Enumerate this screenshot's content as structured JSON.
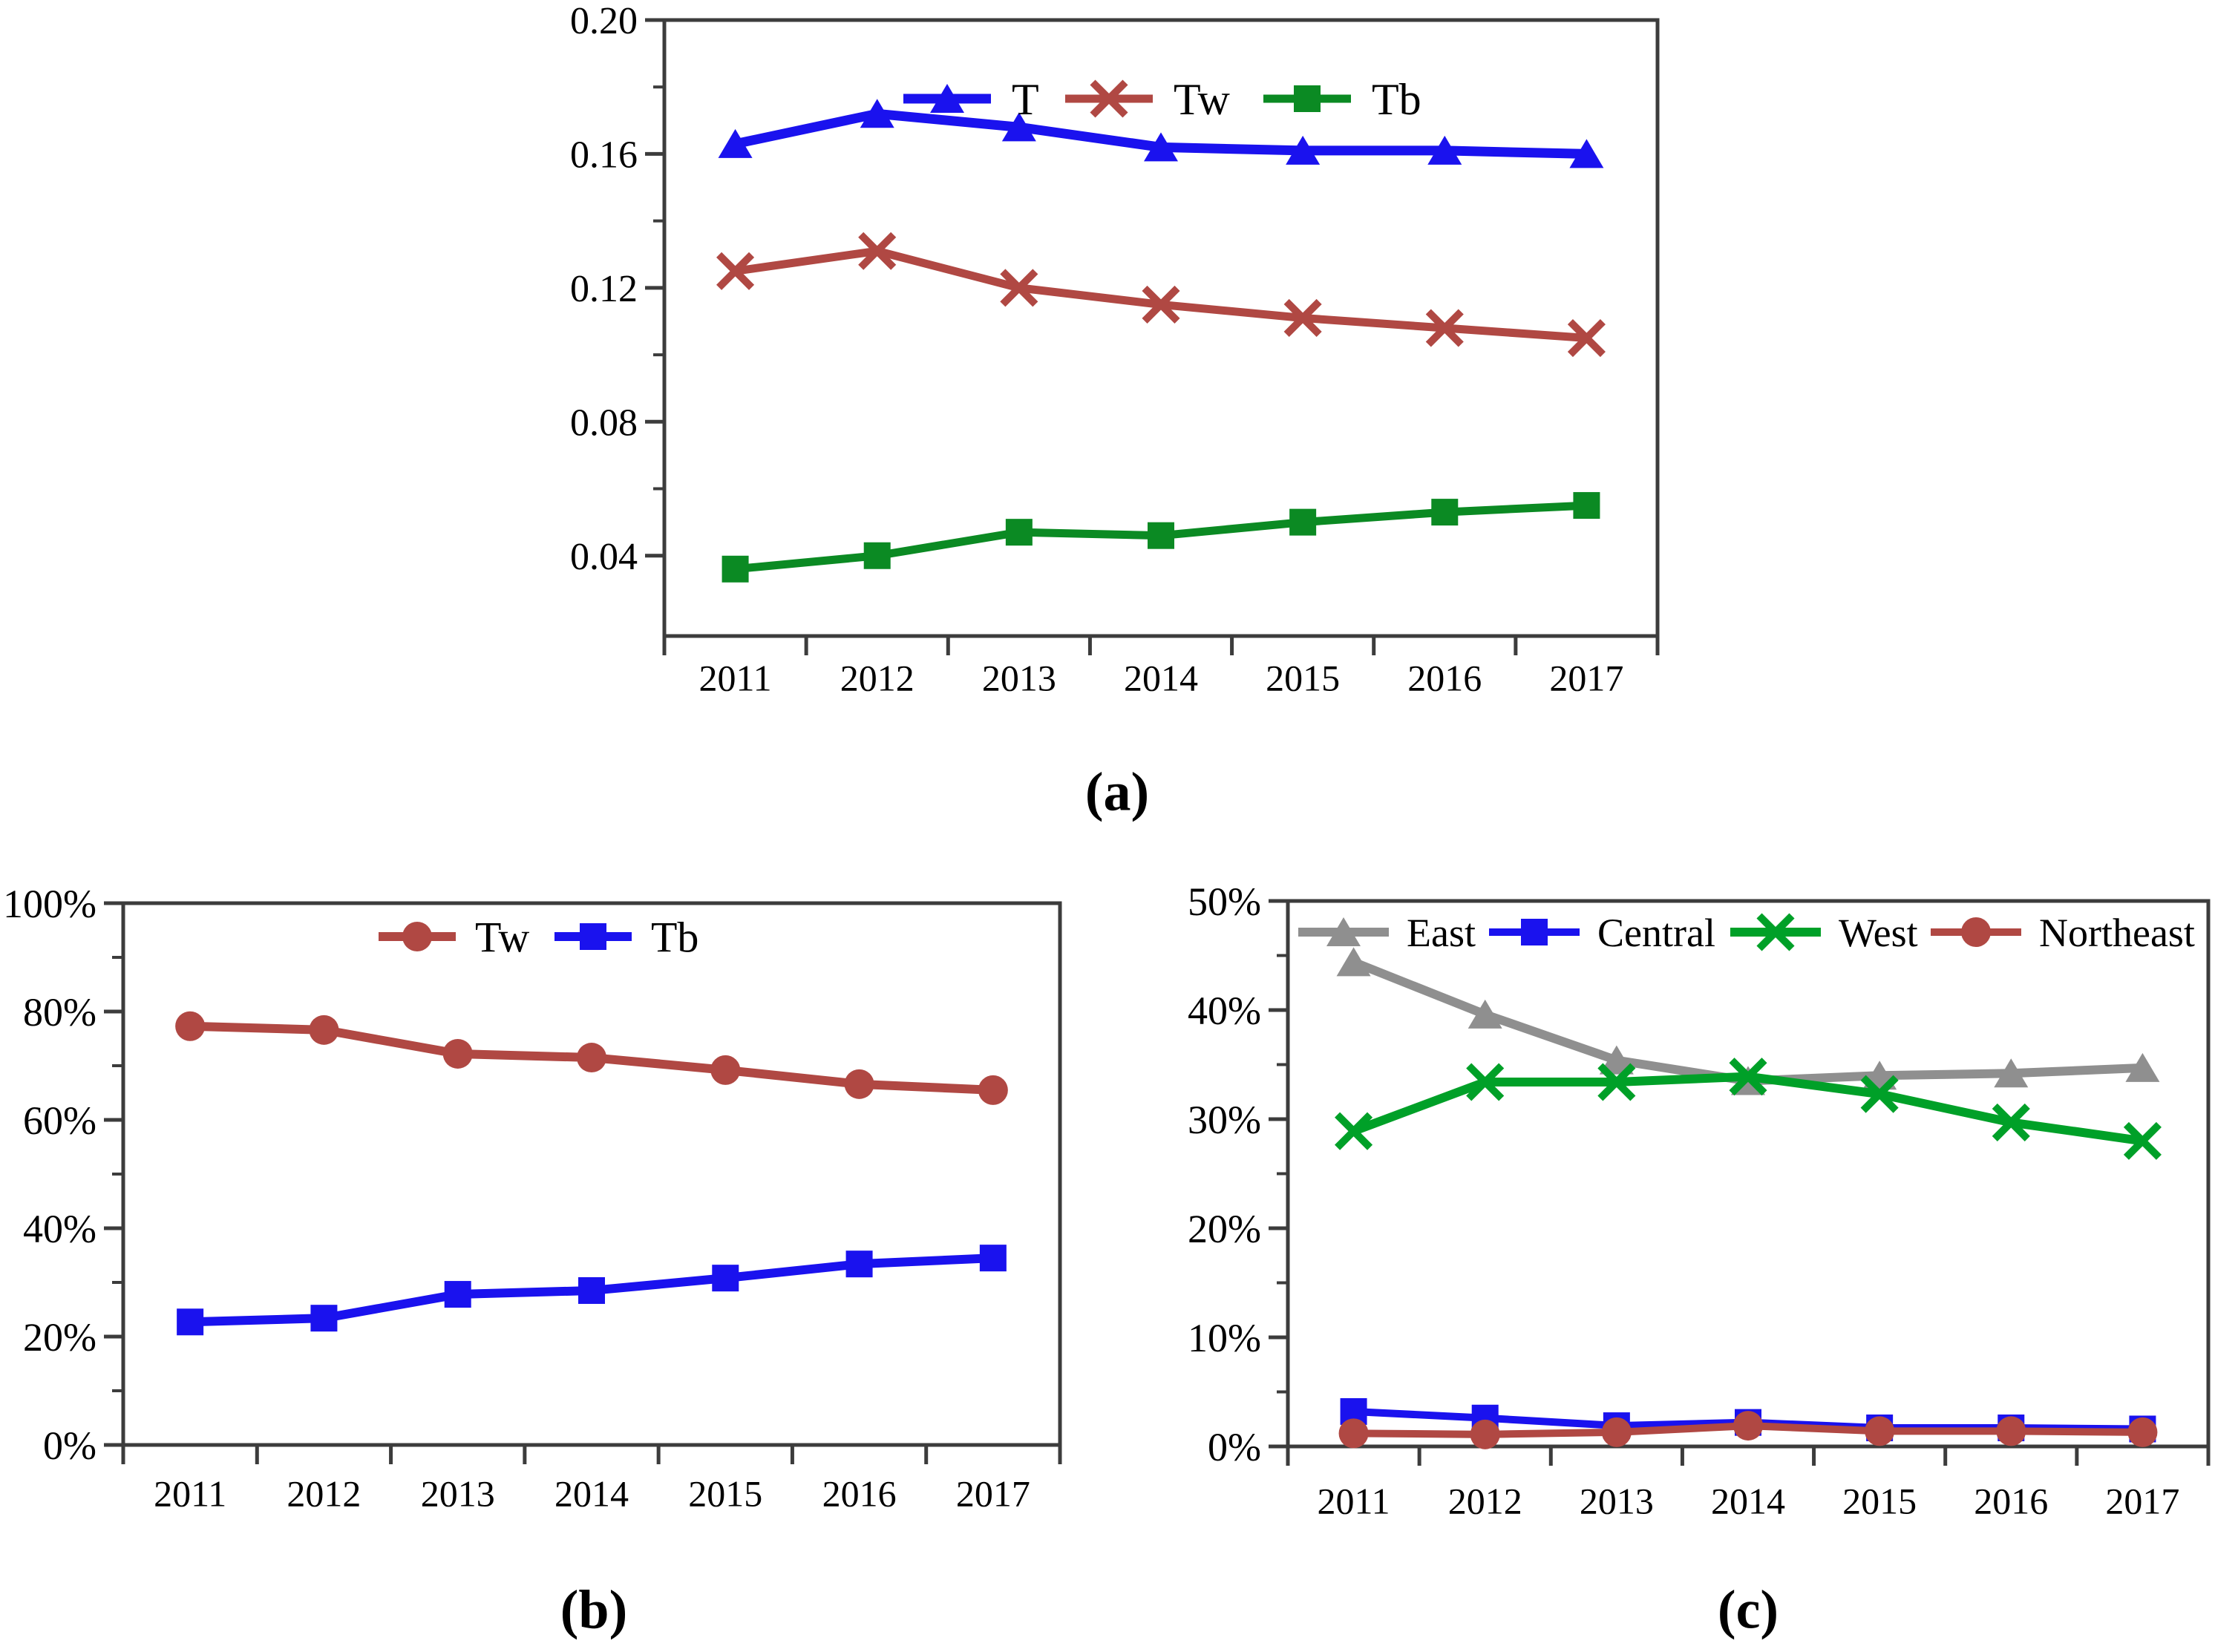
{
  "figure": {
    "background": "#ffffff",
    "axis_color": "#3c3c3c",
    "text_color": "#000000"
  },
  "chart_data": [
    {
      "id": "a",
      "type": "line",
      "caption": "(a)",
      "categories": [
        "2011",
        "2012",
        "2013",
        "2014",
        "2015",
        "2016",
        "2017"
      ],
      "ylim": [
        0.016,
        0.2
      ],
      "y_major_ticks": [
        0.2,
        0.16,
        0.12,
        0.08,
        0.04
      ],
      "y_tick_labels": [
        "0.20",
        "0.16",
        "0.12",
        "0.08",
        "0.04"
      ],
      "y_minor_ticks": [
        0.18,
        0.14,
        0.1,
        0.06
      ],
      "grid": false,
      "legend_position": "top-center-inside",
      "series": [
        {
          "name": "T",
          "marker": "triangle",
          "color": "#1a12ee",
          "values": [
            0.163,
            0.172,
            0.168,
            0.162,
            0.161,
            0.161,
            0.16
          ]
        },
        {
          "name": "Tw",
          "marker": "x",
          "color": "#b04843",
          "values": [
            0.125,
            0.131,
            0.12,
            0.115,
            0.111,
            0.108,
            0.105
          ]
        },
        {
          "name": "Tb",
          "marker": "square",
          "color": "#0b8a23",
          "values": [
            0.036,
            0.04,
            0.047,
            0.046,
            0.05,
            0.053,
            0.055
          ]
        }
      ]
    },
    {
      "id": "b",
      "type": "line",
      "caption": "(b)",
      "categories": [
        "2011",
        "2012",
        "2013",
        "2014",
        "2015",
        "2016",
        "2017"
      ],
      "ylim": [
        0,
        100
      ],
      "y_major_ticks": [
        100,
        80,
        60,
        40,
        20,
        0
      ],
      "y_tick_labels": [
        "100%",
        "80%",
        "60%",
        "40%",
        "20%",
        "0%"
      ],
      "y_minor_ticks": [
        90,
        70,
        50,
        30,
        10
      ],
      "grid": false,
      "legend_position": "top-center-inside",
      "series": [
        {
          "name": "Tw",
          "marker": "circle",
          "color": "#b04843",
          "values": [
            77.3,
            76.6,
            72.2,
            71.5,
            69.2,
            66.6,
            65.5
          ]
        },
        {
          "name": "Tb",
          "marker": "square",
          "color": "#1a12ee",
          "values": [
            22.7,
            23.4,
            27.8,
            28.5,
            30.8,
            33.4,
            34.5
          ]
        }
      ]
    },
    {
      "id": "c",
      "type": "line",
      "caption": "(c)",
      "categories": [
        "2011",
        "2012",
        "2013",
        "2014",
        "2015",
        "2016",
        "2017"
      ],
      "ylim": [
        0,
        50
      ],
      "y_major_ticks": [
        50,
        40,
        30,
        20,
        10,
        0
      ],
      "y_tick_labels": [
        "50%",
        "40%",
        "30%",
        "20%",
        "10%",
        "0%"
      ],
      "y_minor_ticks": [
        45,
        35,
        25,
        15,
        5
      ],
      "grid": false,
      "legend_position": "top-center-inside",
      "series": [
        {
          "name": "East",
          "marker": "triangle",
          "color": "#8f8f8f",
          "values": [
            44.4,
            39.6,
            35.4,
            33.5,
            34.0,
            34.2,
            34.7
          ]
        },
        {
          "name": "Central",
          "marker": "square",
          "color": "#1a12ee",
          "values": [
            3.2,
            2.6,
            1.9,
            2.2,
            1.7,
            1.7,
            1.6
          ]
        },
        {
          "name": "West",
          "marker": "x",
          "color": "#00a028",
          "values": [
            28.9,
            33.4,
            33.4,
            33.9,
            32.3,
            29.7,
            28.0
          ]
        },
        {
          "name": "Northeast",
          "marker": "circle",
          "color": "#b04843",
          "values": [
            1.2,
            1.1,
            1.3,
            1.9,
            1.4,
            1.4,
            1.3
          ]
        }
      ]
    }
  ]
}
